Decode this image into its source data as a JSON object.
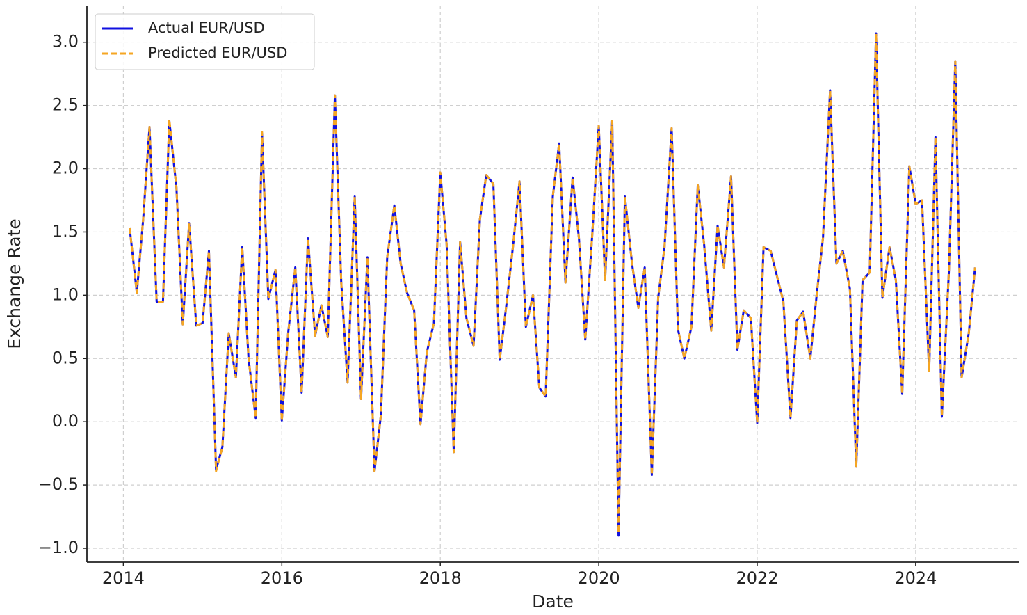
{
  "chart_data": {
    "type": "line",
    "x_label": "Date",
    "y_label": "Exchange Rate",
    "x": [
      2014.08,
      2014.17,
      2014.25,
      2014.33,
      2014.42,
      2014.5,
      2014.58,
      2014.67,
      2014.75,
      2014.83,
      2014.92,
      2015,
      2015.08,
      2015.17,
      2015.25,
      2015.33,
      2015.42,
      2015.5,
      2015.58,
      2015.67,
      2015.75,
      2015.83,
      2015.92,
      2016,
      2016.08,
      2016.17,
      2016.25,
      2016.33,
      2016.42,
      2016.5,
      2016.58,
      2016.67,
      2016.75,
      2016.83,
      2016.92,
      2017,
      2017.08,
      2017.17,
      2017.25,
      2017.33,
      2017.42,
      2017.5,
      2017.58,
      2017.67,
      2017.75,
      2017.83,
      2017.92,
      2018,
      2018.08,
      2018.17,
      2018.25,
      2018.33,
      2018.42,
      2018.5,
      2018.58,
      2018.67,
      2018.75,
      2018.83,
      2018.92,
      2019,
      2019.08,
      2019.17,
      2019.25,
      2019.33,
      2019.42,
      2019.5,
      2019.58,
      2019.67,
      2019.75,
      2019.83,
      2019.92,
      2020,
      2020.08,
      2020.17,
      2020.25,
      2020.33,
      2020.42,
      2020.5,
      2020.58,
      2020.67,
      2020.75,
      2020.83,
      2020.92,
      2021,
      2021.08,
      2021.17,
      2021.25,
      2021.33,
      2021.42,
      2021.5,
      2021.58,
      2021.67,
      2021.75,
      2021.83,
      2021.92,
      2022,
      2022.08,
      2022.17,
      2022.25,
      2022.33,
      2022.42,
      2022.5,
      2022.58,
      2022.67,
      2022.75,
      2022.83,
      2022.92,
      2023,
      2023.08,
      2023.17,
      2023.25,
      2023.33,
      2023.42,
      2023.5,
      2023.58,
      2023.67,
      2023.75,
      2023.83,
      2023.92,
      2024,
      2024.08,
      2024.17,
      2024.25,
      2024.33,
      2024.42,
      2024.5,
      2024.58,
      2024.67,
      2024.75
    ],
    "series": [
      {
        "name": "Actual EUR/USD",
        "color": "#1010e0",
        "style": "solid",
        "values": [
          1.53,
          1.02,
          1.6,
          2.33,
          0.95,
          0.95,
          2.38,
          1.85,
          0.77,
          1.57,
          0.76,
          0.78,
          1.35,
          -0.38,
          -0.2,
          0.7,
          0.35,
          1.38,
          0.5,
          0.03,
          2.28,
          0.97,
          1.2,
          0.01,
          0.7,
          1.22,
          0.23,
          1.45,
          0.68,
          0.92,
          0.67,
          2.58,
          1.1,
          0.31,
          1.78,
          0.18,
          1.3,
          -0.39,
          0.05,
          1.3,
          1.71,
          1.25,
          1.02,
          0.88,
          -0.02,
          0.55,
          0.78,
          1.97,
          1.4,
          -0.24,
          1.42,
          0.82,
          0.6,
          1.6,
          1.95,
          1.88,
          0.49,
          0.9,
          1.4,
          1.9,
          0.75,
          1.0,
          0.27,
          0.2,
          1.78,
          2.2,
          1.1,
          1.93,
          1.45,
          0.65,
          1.5,
          2.34,
          1.12,
          2.38,
          -0.9,
          1.78,
          1.25,
          0.9,
          1.22,
          -0.42,
          0.98,
          1.38,
          2.32,
          0.73,
          0.5,
          0.75,
          1.87,
          1.4,
          0.72,
          1.55,
          1.22,
          1.94,
          0.57,
          0.88,
          0.82,
          -0.01,
          1.38,
          1.35,
          1.15,
          0.95,
          0.03,
          0.8,
          0.87,
          0.5,
          1.0,
          1.45,
          2.62,
          1.25,
          1.35,
          1.05,
          -0.35,
          1.12,
          1.18,
          3.07,
          0.98,
          1.38,
          1.12,
          0.22,
          2.02,
          1.72,
          1.75,
          0.4,
          2.25,
          0.04,
          1.2,
          2.85,
          0.35,
          0.7,
          1.22
        ]
      },
      {
        "name": "Predicted EUR/USD",
        "color": "#f5a623",
        "style": "dashed",
        "values": [
          1.53,
          1.02,
          1.6,
          2.33,
          0.95,
          0.95,
          2.39,
          1.85,
          0.77,
          1.57,
          0.76,
          0.78,
          1.35,
          -0.39,
          -0.2,
          0.7,
          0.35,
          1.38,
          0.5,
          0.03,
          2.29,
          0.97,
          1.2,
          0.01,
          0.7,
          1.22,
          0.23,
          1.45,
          0.68,
          0.92,
          0.67,
          2.58,
          1.1,
          0.31,
          1.78,
          0.18,
          1.3,
          -0.39,
          0.05,
          1.3,
          1.71,
          1.25,
          1.02,
          0.88,
          -0.02,
          0.55,
          0.78,
          1.97,
          1.4,
          -0.24,
          1.42,
          0.82,
          0.6,
          1.6,
          1.95,
          1.88,
          0.49,
          0.9,
          1.4,
          1.9,
          0.75,
          1.0,
          0.27,
          0.2,
          1.78,
          2.2,
          1.1,
          1.93,
          1.45,
          0.65,
          1.5,
          2.34,
          1.12,
          2.38,
          -0.88,
          1.78,
          1.25,
          0.9,
          1.22,
          -0.42,
          0.98,
          1.38,
          2.32,
          0.73,
          0.5,
          0.75,
          1.87,
          1.4,
          0.72,
          1.55,
          1.22,
          1.94,
          0.57,
          0.88,
          0.82,
          -0.01,
          1.38,
          1.35,
          1.15,
          0.95,
          0.03,
          0.8,
          0.87,
          0.5,
          1.0,
          1.45,
          2.62,
          1.25,
          1.35,
          1.05,
          -0.35,
          1.12,
          1.18,
          3.07,
          0.98,
          1.38,
          1.12,
          0.22,
          2.02,
          1.72,
          1.75,
          0.4,
          2.25,
          0.04,
          1.2,
          2.85,
          0.35,
          0.7,
          1.22
        ]
      }
    ],
    "xlim": [
      2013.54,
      2025.3
    ],
    "xticks": [
      2014,
      2016,
      2018,
      2020,
      2022,
      2024
    ],
    "ylim": [
      -1.11,
      3.29
    ],
    "yticks": [
      {
        "value": -1,
        "label": "−1.0"
      },
      {
        "value": -0.5,
        "label": "−0.5"
      },
      {
        "value": 0,
        "label": "0.0"
      },
      0.5,
      {
        "value": 1,
        "label": "1.0"
      },
      1.5,
      {
        "value": 2,
        "label": "2.0"
      },
      2.5,
      {
        "value": 3,
        "label": "3.0"
      }
    ],
    "grid": true,
    "legend": "upper-left"
  }
}
